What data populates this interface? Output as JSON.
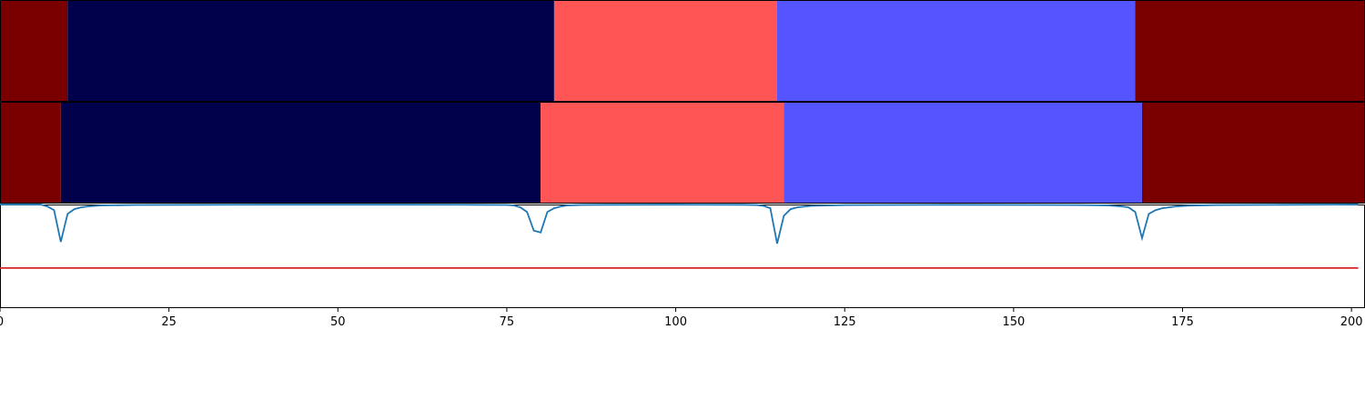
{
  "chart_data": {
    "type": "segmentation",
    "x_axis": {
      "xlim": [
        0,
        202
      ],
      "ticks": [
        0,
        25,
        50,
        75,
        100,
        125,
        150,
        175,
        200
      ],
      "tick_labels": [
        "0",
        "25",
        "50",
        "75",
        "100",
        "125",
        "150",
        "175",
        "200"
      ]
    },
    "colors": {
      "dark_red": "#7a0000",
      "navy": "#00004b",
      "salmon": "#ff5555",
      "periwinkle": "#5555ff",
      "line_blue": "#1f77b4",
      "threshold_red": "#d62728"
    },
    "segment_tracks": [
      {
        "segments": [
          {
            "start": 0,
            "end": 10,
            "color": "#7a0000"
          },
          {
            "start": 10,
            "end": 82,
            "color": "#00004b"
          },
          {
            "start": 82,
            "end": 115,
            "color": "#ff5555"
          },
          {
            "start": 115,
            "end": 168,
            "color": "#5555ff"
          },
          {
            "start": 168,
            "end": 202,
            "color": "#7a0000"
          }
        ]
      },
      {
        "segments": [
          {
            "start": 0,
            "end": 9,
            "color": "#7a0000"
          },
          {
            "start": 9,
            "end": 80,
            "color": "#00004b"
          },
          {
            "start": 80,
            "end": 116,
            "color": "#ff5555"
          },
          {
            "start": 116,
            "end": 169,
            "color": "#5555ff"
          },
          {
            "start": 169,
            "end": 202,
            "color": "#7a0000"
          }
        ]
      }
    ],
    "signal": {
      "ylim": [
        -1.1,
        0.0
      ],
      "threshold": -0.68,
      "x": [
        0,
        6,
        7,
        8,
        9,
        10,
        11,
        12,
        13,
        15,
        20,
        30,
        40,
        50,
        60,
        70,
        75,
        76,
        77,
        78,
        79,
        80,
        81,
        82,
        83,
        84,
        86,
        90,
        100,
        110,
        112,
        113,
        114,
        115,
        116,
        117,
        118,
        120,
        125,
        140,
        160,
        164,
        166,
        167,
        168,
        169,
        170,
        171,
        172,
        174,
        176,
        180,
        190,
        201
      ],
      "y": [
        0,
        0,
        -0.02,
        -0.06,
        -0.4,
        -0.1,
        -0.05,
        -0.03,
        -0.02,
        -0.01,
        -0.005,
        -0.003,
        -0.002,
        -0.002,
        -0.002,
        -0.003,
        -0.005,
        -0.01,
        -0.03,
        -0.08,
        -0.28,
        -0.3,
        -0.08,
        -0.04,
        -0.02,
        -0.01,
        -0.005,
        -0.003,
        -0.002,
        -0.003,
        -0.006,
        -0.015,
        -0.04,
        -0.42,
        -0.12,
        -0.05,
        -0.03,
        -0.015,
        -0.006,
        -0.003,
        -0.006,
        -0.01,
        -0.02,
        -0.03,
        -0.08,
        -0.36,
        -0.1,
        -0.06,
        -0.04,
        -0.02,
        -0.012,
        -0.006,
        -0.003,
        0
      ]
    }
  }
}
